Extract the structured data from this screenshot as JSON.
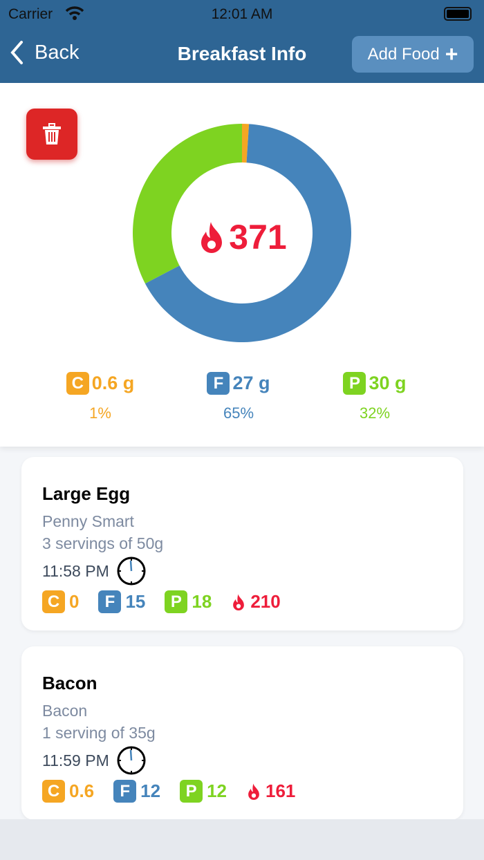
{
  "status": {
    "carrier": "Carrier",
    "time": "12:01 AM"
  },
  "nav": {
    "back": "Back",
    "title": "Breakfast Info",
    "add_food": "Add Food",
    "add_icon": "+"
  },
  "colors": {
    "carbs": "#f5a623",
    "fat": "#4584bb",
    "protein": "#7ed321",
    "calories": "#ee1d3a",
    "header": "#2e6594"
  },
  "summary": {
    "calories": "371",
    "macros": [
      {
        "letter": "C",
        "amount": "0.6 g",
        "percent": "1%",
        "share": 1
      },
      {
        "letter": "F",
        "amount": "27 g",
        "percent": "65%",
        "share": 65
      },
      {
        "letter": "P",
        "amount": "30 g",
        "percent": "32%",
        "share": 32
      }
    ]
  },
  "foods": [
    {
      "name": "Large Egg",
      "brand": "Penny Smart",
      "serving": "3 servings of 50g",
      "time": "11:58 PM",
      "c": "0",
      "f": "15",
      "p": "18",
      "kcal": "210"
    },
    {
      "name": "Bacon",
      "brand": "Bacon",
      "serving": "1 serving of 35g",
      "time": "11:59 PM",
      "c": "0.6",
      "f": "12",
      "p": "12",
      "kcal": "161"
    }
  ]
}
